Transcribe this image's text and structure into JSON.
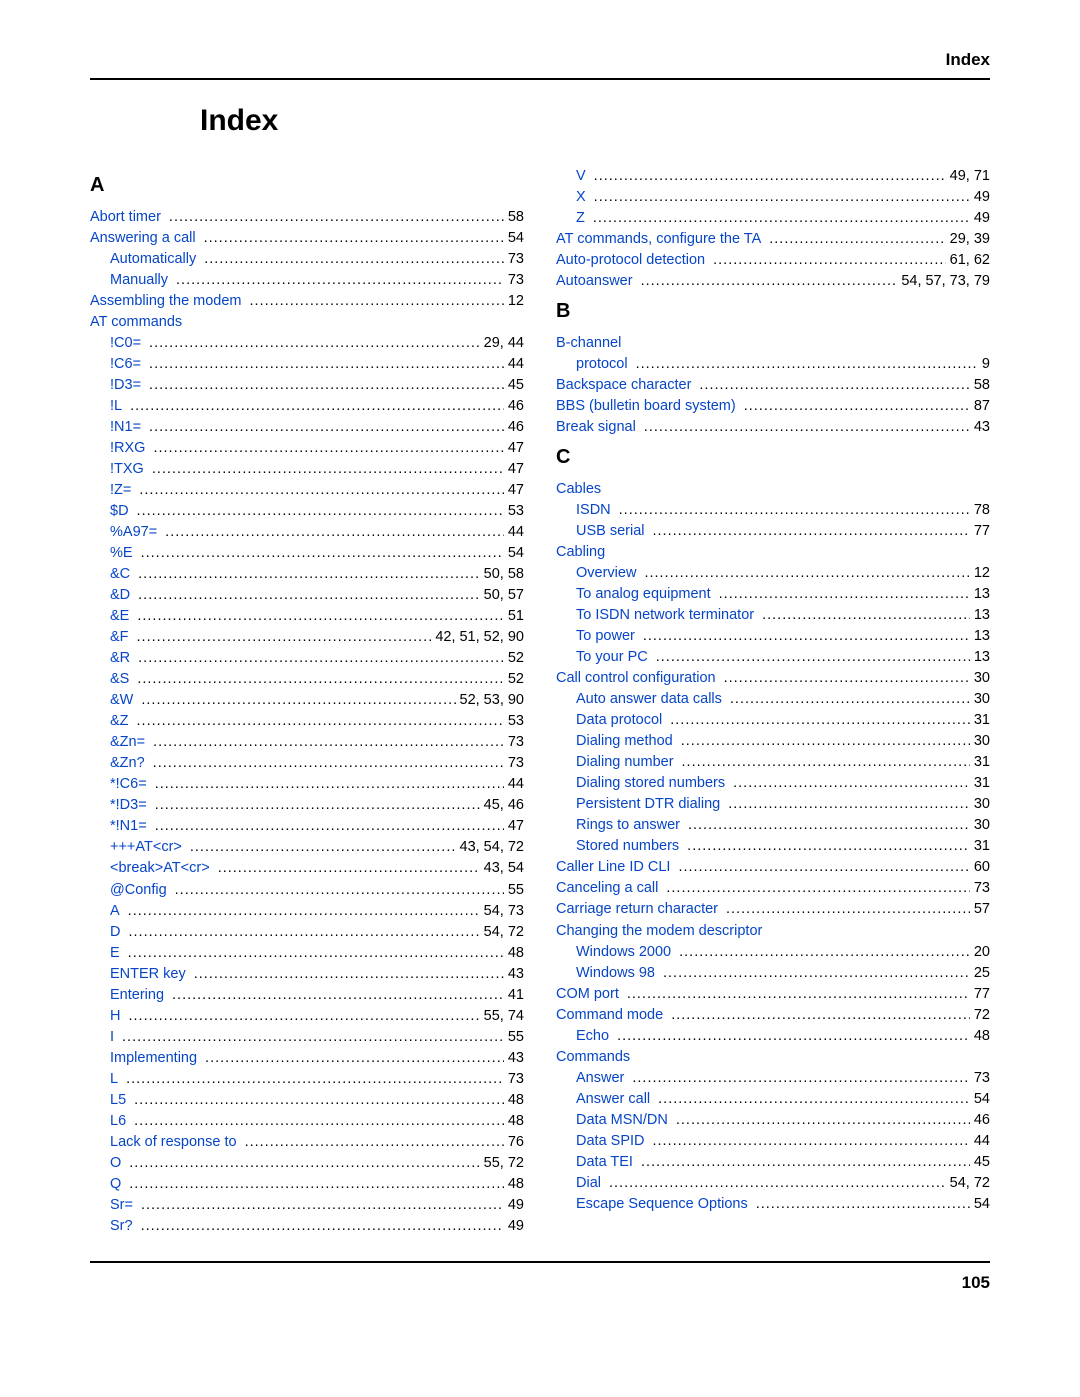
{
  "header": "Index",
  "title": "Index",
  "footer": "105",
  "link_color": "#0645c8",
  "text_color": "#000000",
  "background_color": "#ffffff",
  "hr_color": "#000000",
  "columns": [
    {
      "sections": [
        {
          "letter": "A",
          "entries": [
            {
              "indent": 0,
              "label": "Abort timer",
              "link": true,
              "pages": "58"
            },
            {
              "indent": 0,
              "label": "Answering a call",
              "link": true,
              "pages": "54"
            },
            {
              "indent": 1,
              "label": "Automatically",
              "link": true,
              "pages": "73"
            },
            {
              "indent": 1,
              "label": "Manually",
              "link": true,
              "pages": "73"
            },
            {
              "indent": 0,
              "label": "Assembling the modem",
              "link": true,
              "pages": "12"
            },
            {
              "indent": 0,
              "label": "AT commands",
              "link": true,
              "pages": null
            },
            {
              "indent": 1,
              "label": "!C0=",
              "link": true,
              "pages": "29,  44"
            },
            {
              "indent": 1,
              "label": "!C6=",
              "link": true,
              "pages": "44"
            },
            {
              "indent": 1,
              "label": "!D3=",
              "link": true,
              "pages": "45"
            },
            {
              "indent": 1,
              "label": "!L",
              "link": true,
              "pages": "46"
            },
            {
              "indent": 1,
              "label": "!N1=",
              "link": true,
              "pages": "46"
            },
            {
              "indent": 1,
              "label": "!RXG",
              "link": true,
              "pages": "47"
            },
            {
              "indent": 1,
              "label": "!TXG",
              "link": true,
              "pages": "47"
            },
            {
              "indent": 1,
              "label": "!Z=",
              "link": true,
              "pages": "47"
            },
            {
              "indent": 1,
              "label": "$D",
              "link": true,
              "pages": "53"
            },
            {
              "indent": 1,
              "label": "%A97=",
              "link": true,
              "pages": "44"
            },
            {
              "indent": 1,
              "label": "%E",
              "link": true,
              "pages": "54"
            },
            {
              "indent": 1,
              "label": "&C",
              "link": true,
              "pages": "50,  58"
            },
            {
              "indent": 1,
              "label": "&D",
              "link": true,
              "pages": "50,  57"
            },
            {
              "indent": 1,
              "label": "&E",
              "link": true,
              "pages": "51"
            },
            {
              "indent": 1,
              "label": "&F",
              "link": true,
              "pages": "42,  51,  52,  90"
            },
            {
              "indent": 1,
              "label": "&R",
              "link": true,
              "pages": "52"
            },
            {
              "indent": 1,
              "label": "&S",
              "link": true,
              "pages": "52"
            },
            {
              "indent": 1,
              "label": "&W",
              "link": true,
              "pages": "52,  53,  90"
            },
            {
              "indent": 1,
              "label": "&Z",
              "link": true,
              "pages": "53"
            },
            {
              "indent": 1,
              "label": "&Zn=",
              "link": true,
              "pages": "73"
            },
            {
              "indent": 1,
              "label": "&Zn?",
              "link": true,
              "pages": "73"
            },
            {
              "indent": 1,
              "label": "*!C6=",
              "link": true,
              "pages": "44"
            },
            {
              "indent": 1,
              "label": "*!D3=",
              "link": true,
              "pages": "45,  46"
            },
            {
              "indent": 1,
              "label": "*!N1=",
              "link": true,
              "pages": "47"
            },
            {
              "indent": 1,
              "label": "+++AT<cr>",
              "link": true,
              "pages": "43,  54,  72"
            },
            {
              "indent": 1,
              "label": "<break>AT<cr>",
              "link": true,
              "pages": "43,  54"
            },
            {
              "indent": 1,
              "label": "@Config",
              "link": true,
              "pages": "55"
            },
            {
              "indent": 1,
              "label": "A",
              "link": true,
              "pages": "54,  73"
            },
            {
              "indent": 1,
              "label": "D",
              "link": true,
              "pages": "54,  72"
            },
            {
              "indent": 1,
              "label": "E",
              "link": true,
              "pages": "48"
            },
            {
              "indent": 1,
              "label": "ENTER key",
              "link": true,
              "pages": "43"
            },
            {
              "indent": 1,
              "label": "Entering",
              "link": true,
              "pages": "41"
            },
            {
              "indent": 1,
              "label": "H",
              "link": true,
              "pages": "55,  74"
            },
            {
              "indent": 1,
              "label": "I",
              "link": true,
              "pages": "55"
            },
            {
              "indent": 1,
              "label": "Implementing",
              "link": true,
              "pages": "43"
            },
            {
              "indent": 1,
              "label": "L",
              "link": true,
              "pages": "73"
            },
            {
              "indent": 1,
              "label": "L5",
              "link": true,
              "pages": "48"
            },
            {
              "indent": 1,
              "label": "L6",
              "link": true,
              "pages": "48"
            },
            {
              "indent": 1,
              "label": "Lack of response to",
              "link": true,
              "pages": "76"
            },
            {
              "indent": 1,
              "label": "O",
              "link": true,
              "pages": "55,  72"
            },
            {
              "indent": 1,
              "label": "Q",
              "link": true,
              "pages": "48"
            },
            {
              "indent": 1,
              "label": "Sr=",
              "link": true,
              "pages": "49"
            },
            {
              "indent": 1,
              "label": "Sr?",
              "link": true,
              "pages": "49"
            }
          ]
        }
      ]
    },
    {
      "sections": [
        {
          "letter": null,
          "entries": [
            {
              "indent": 1,
              "label": "V",
              "link": true,
              "pages": "49,  71"
            },
            {
              "indent": 1,
              "label": "X",
              "link": true,
              "pages": "49"
            },
            {
              "indent": 1,
              "label": "Z",
              "link": true,
              "pages": "49"
            },
            {
              "indent": 0,
              "label": "AT commands, configure the TA",
              "link": true,
              "pages": "29,  39"
            },
            {
              "indent": 0,
              "label": "Auto-protocol detection",
              "link": true,
              "pages": "61,  62"
            },
            {
              "indent": 0,
              "label": "Autoanswer",
              "link": true,
              "pages": "54,  57,  73,  79"
            }
          ]
        },
        {
          "letter": "B",
          "entries": [
            {
              "indent": 0,
              "label": "B-channel",
              "link": true,
              "pages": null
            },
            {
              "indent": 1,
              "label": "protocol",
              "link": true,
              "pages": "9"
            },
            {
              "indent": 0,
              "label": "Backspace character",
              "link": true,
              "pages": "58"
            },
            {
              "indent": 0,
              "label": "BBS (bulletin board system)",
              "link": true,
              "pages": "87"
            },
            {
              "indent": 0,
              "label": "Break signal",
              "link": true,
              "pages": "43"
            }
          ]
        },
        {
          "letter": "C",
          "entries": [
            {
              "indent": 0,
              "label": "Cables",
              "link": true,
              "pages": null
            },
            {
              "indent": 1,
              "label": "ISDN",
              "link": true,
              "pages": "78"
            },
            {
              "indent": 1,
              "label": "USB serial",
              "link": true,
              "pages": "77"
            },
            {
              "indent": 0,
              "label": "Cabling",
              "link": true,
              "pages": null
            },
            {
              "indent": 1,
              "label": "Overview",
              "link": true,
              "pages": "12"
            },
            {
              "indent": 1,
              "label": "To analog equipment",
              "link": true,
              "pages": "13"
            },
            {
              "indent": 1,
              "label": "To ISDN network terminator",
              "link": true,
              "pages": "13"
            },
            {
              "indent": 1,
              "label": "To power",
              "link": true,
              "pages": "13"
            },
            {
              "indent": 1,
              "label": "To your PC",
              "link": true,
              "pages": "13"
            },
            {
              "indent": 0,
              "label": "Call control configuration",
              "link": true,
              "pages": "30"
            },
            {
              "indent": 1,
              "label": "Auto answer data calls",
              "link": true,
              "pages": "30"
            },
            {
              "indent": 1,
              "label": "Data protocol",
              "link": true,
              "pages": "31"
            },
            {
              "indent": 1,
              "label": "Dialing method",
              "link": true,
              "pages": "30"
            },
            {
              "indent": 1,
              "label": "Dialing number",
              "link": true,
              "pages": "31"
            },
            {
              "indent": 1,
              "label": "Dialing stored numbers",
              "link": true,
              "pages": "31"
            },
            {
              "indent": 1,
              "label": "Persistent DTR dialing",
              "link": true,
              "pages": "30"
            },
            {
              "indent": 1,
              "label": "Rings to answer",
              "link": true,
              "pages": "30"
            },
            {
              "indent": 1,
              "label": "Stored numbers",
              "link": true,
              "pages": "31"
            },
            {
              "indent": 0,
              "label": "Caller Line ID CLI",
              "link": true,
              "pages": "60"
            },
            {
              "indent": 0,
              "label": "Canceling a call",
              "link": true,
              "pages": "73"
            },
            {
              "indent": 0,
              "label": "Carriage return character",
              "link": true,
              "pages": "57"
            },
            {
              "indent": 0,
              "label": "Changing the modem descriptor",
              "link": true,
              "pages": null
            },
            {
              "indent": 1,
              "label": "Windows 2000",
              "link": true,
              "pages": "20"
            },
            {
              "indent": 1,
              "label": "Windows 98",
              "link": true,
              "pages": "25"
            },
            {
              "indent": 0,
              "label": "COM port",
              "link": true,
              "pages": "77"
            },
            {
              "indent": 0,
              "label": "Command mode",
              "link": true,
              "pages": "72"
            },
            {
              "indent": 1,
              "label": "Echo",
              "link": true,
              "pages": "48"
            },
            {
              "indent": 0,
              "label": "Commands",
              "link": true,
              "pages": null
            },
            {
              "indent": 1,
              "label": "Answer",
              "link": true,
              "pages": "73"
            },
            {
              "indent": 1,
              "label": "Answer call",
              "link": true,
              "pages": "54"
            },
            {
              "indent": 1,
              "label": "Data MSN/DN",
              "link": true,
              "pages": "46"
            },
            {
              "indent": 1,
              "label": "Data SPID",
              "link": true,
              "pages": "44"
            },
            {
              "indent": 1,
              "label": "Data TEI",
              "link": true,
              "pages": "45"
            },
            {
              "indent": 1,
              "label": "Dial",
              "link": true,
              "pages": "54,  72"
            },
            {
              "indent": 1,
              "label": "Escape Sequence Options",
              "link": true,
              "pages": "54"
            }
          ]
        }
      ]
    }
  ]
}
